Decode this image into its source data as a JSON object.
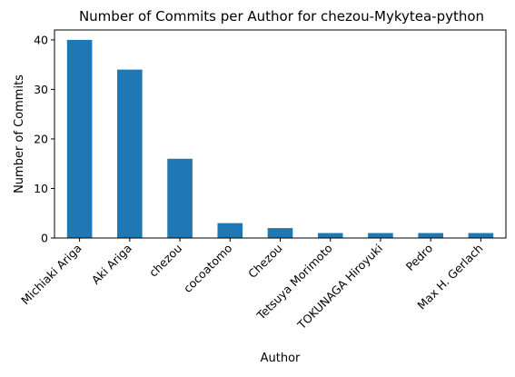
{
  "chart_data": {
    "type": "bar",
    "title": "Number of Commits per Author for chezou-Mykytea-python",
    "xlabel": "Author",
    "ylabel": "Number of Commits",
    "categories": [
      "Michiaki Ariga",
      "Aki Ariga",
      "chezou",
      "cocoatomo",
      "Chezou",
      "Tetsuya Morimoto",
      "TOKUNAGA Hiroyuki",
      "Pedro",
      "Max H. Gerlach"
    ],
    "values": [
      40,
      34,
      16,
      3,
      2,
      1,
      1,
      1,
      1
    ],
    "ylim": [
      0,
      42
    ],
    "yticks": [
      0,
      10,
      20,
      30,
      40
    ],
    "grid": false,
    "legend": "none",
    "bar_color": "#1f77b4"
  }
}
